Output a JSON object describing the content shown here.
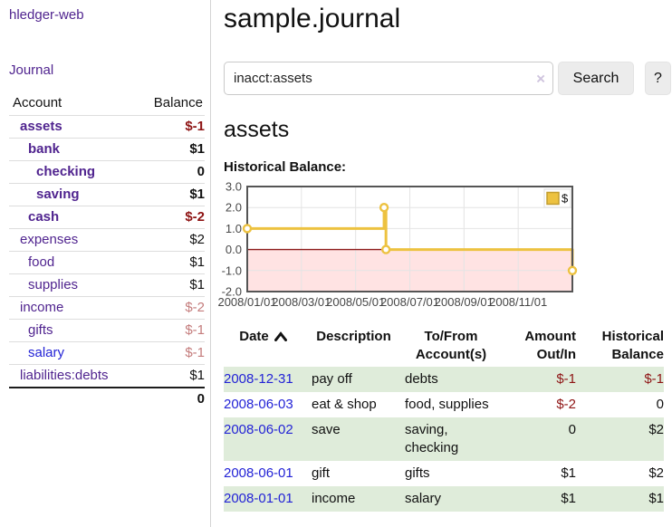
{
  "sidebar": {
    "app_title": "hledger-web",
    "journal_label": "Journal",
    "accounts_table": {
      "headers": {
        "account": "Account",
        "balance": "Balance"
      },
      "rows": [
        {
          "name": "assets",
          "balance": "$-1",
          "indent": 0,
          "bold": true,
          "balance_style": "negative",
          "link_style": "purple"
        },
        {
          "name": "bank",
          "balance": "$1",
          "indent": 1,
          "bold": true,
          "balance_style": "normal",
          "link_style": "purple"
        },
        {
          "name": "checking",
          "balance": "0",
          "indent": 2,
          "bold": true,
          "balance_style": "normal",
          "link_style": "purple"
        },
        {
          "name": "saving",
          "balance": "$1",
          "indent": 2,
          "bold": true,
          "balance_style": "normal",
          "link_style": "purple"
        },
        {
          "name": "cash",
          "balance": "$-2",
          "indent": 1,
          "bold": true,
          "balance_style": "negative",
          "link_style": "purple"
        },
        {
          "name": "expenses",
          "balance": "$2",
          "indent": 0,
          "bold": false,
          "balance_style": "normal",
          "link_style": "purple"
        },
        {
          "name": "food",
          "balance": "$1",
          "indent": 1,
          "bold": false,
          "balance_style": "normal",
          "link_style": "purple"
        },
        {
          "name": "supplies",
          "balance": "$1",
          "indent": 1,
          "bold": false,
          "balance_style": "normal",
          "link_style": "purple"
        },
        {
          "name": "income",
          "balance": "$-2",
          "indent": 0,
          "bold": false,
          "balance_style": "negative-soft",
          "link_style": "purple"
        },
        {
          "name": "gifts",
          "balance": "$-1",
          "indent": 1,
          "bold": false,
          "balance_style": "negative-soft",
          "link_style": "purple"
        },
        {
          "name": "salary",
          "balance": "$-1",
          "indent": 1,
          "bold": false,
          "balance_style": "negative-soft",
          "link_style": "blue"
        },
        {
          "name": "liabilities:debts",
          "balance": "$1",
          "indent": 0,
          "bold": false,
          "balance_style": "normal",
          "link_style": "purple"
        }
      ],
      "total": "0"
    }
  },
  "main": {
    "title": "sample.journal",
    "search": {
      "value": "inacct:assets",
      "clear_icon": "×",
      "button_label": "Search",
      "help_label": "?"
    },
    "account_heading": "assets",
    "register_table": {
      "headers": [
        {
          "label": "Date",
          "align": "left",
          "sortable": true,
          "sort": "asc"
        },
        {
          "label": "Description",
          "align": "left"
        },
        {
          "label": "To/From Account(s)",
          "align": "left"
        },
        {
          "label": "Amount Out/In",
          "align": "right"
        },
        {
          "label": "Historical Balance",
          "align": "right"
        }
      ],
      "rows": [
        {
          "date": "2008-12-31",
          "description": "pay off",
          "accounts": "debts",
          "amount": "$-1",
          "amount_negative": true,
          "balance": "$-1",
          "balance_negative": true
        },
        {
          "date": "2008-06-03",
          "description": "eat & shop",
          "accounts": "food, supplies",
          "amount": "$-2",
          "amount_negative": true,
          "balance": "0",
          "balance_negative": false
        },
        {
          "date": "2008-06-02",
          "description": "save",
          "accounts": "saving, checking",
          "amount": "0",
          "amount_negative": false,
          "balance": "$2",
          "balance_negative": false
        },
        {
          "date": "2008-06-01",
          "description": "gift",
          "accounts": "gifts",
          "amount": "$1",
          "amount_negative": false,
          "balance": "$2",
          "balance_negative": false
        },
        {
          "date": "2008-01-01",
          "description": "income",
          "accounts": "salary",
          "amount": "$1",
          "amount_negative": false,
          "balance": "$1",
          "balance_negative": false
        }
      ]
    }
  },
  "chart_data": {
    "type": "line",
    "title": "Historical Balance:",
    "step": true,
    "x_unit": "months since 2008-01-01",
    "xlim": [
      0,
      12
    ],
    "ylim": [
      -2,
      3
    ],
    "series": [
      {
        "name": "$",
        "color": "#edc240",
        "points": [
          {
            "x": 0,
            "y": 1,
            "date": "2008-01-01"
          },
          {
            "x": 5.05,
            "y": 2,
            "date": "2008-06-01"
          },
          {
            "x": 5.12,
            "y": 0,
            "date": "2008-06-03"
          },
          {
            "x": 12,
            "y": -1,
            "date": "2008-12-31"
          }
        ]
      }
    ],
    "x_ticks": [
      {
        "x": 0,
        "label": "2008/01/01"
      },
      {
        "x": 2,
        "label": "2008/03/01"
      },
      {
        "x": 4,
        "label": "2008/05/01"
      },
      {
        "x": 6,
        "label": "2008/07/01"
      },
      {
        "x": 8,
        "label": "2008/09/01"
      },
      {
        "x": 10,
        "label": "2008/11/01"
      }
    ],
    "y_ticks": [
      {
        "y": 3,
        "label": "3.0"
      },
      {
        "y": 2,
        "label": "2.0"
      },
      {
        "y": 1,
        "label": "1.0"
      },
      {
        "y": 0,
        "label": "0.0"
      },
      {
        "y": -1,
        "label": "-1.0"
      },
      {
        "y": -2,
        "label": "-2.0"
      }
    ],
    "legend": {
      "label": "$",
      "position": "top-right",
      "swatch_color": "#edc240"
    },
    "colors": {
      "zero_line": "#8c1a1a",
      "negative_region": "rgba(255,80,80,0.16)",
      "grid": "#e4e4e4",
      "border": "#555555",
      "tick_text": "#474747",
      "marker_fill": "#ffffff"
    }
  }
}
